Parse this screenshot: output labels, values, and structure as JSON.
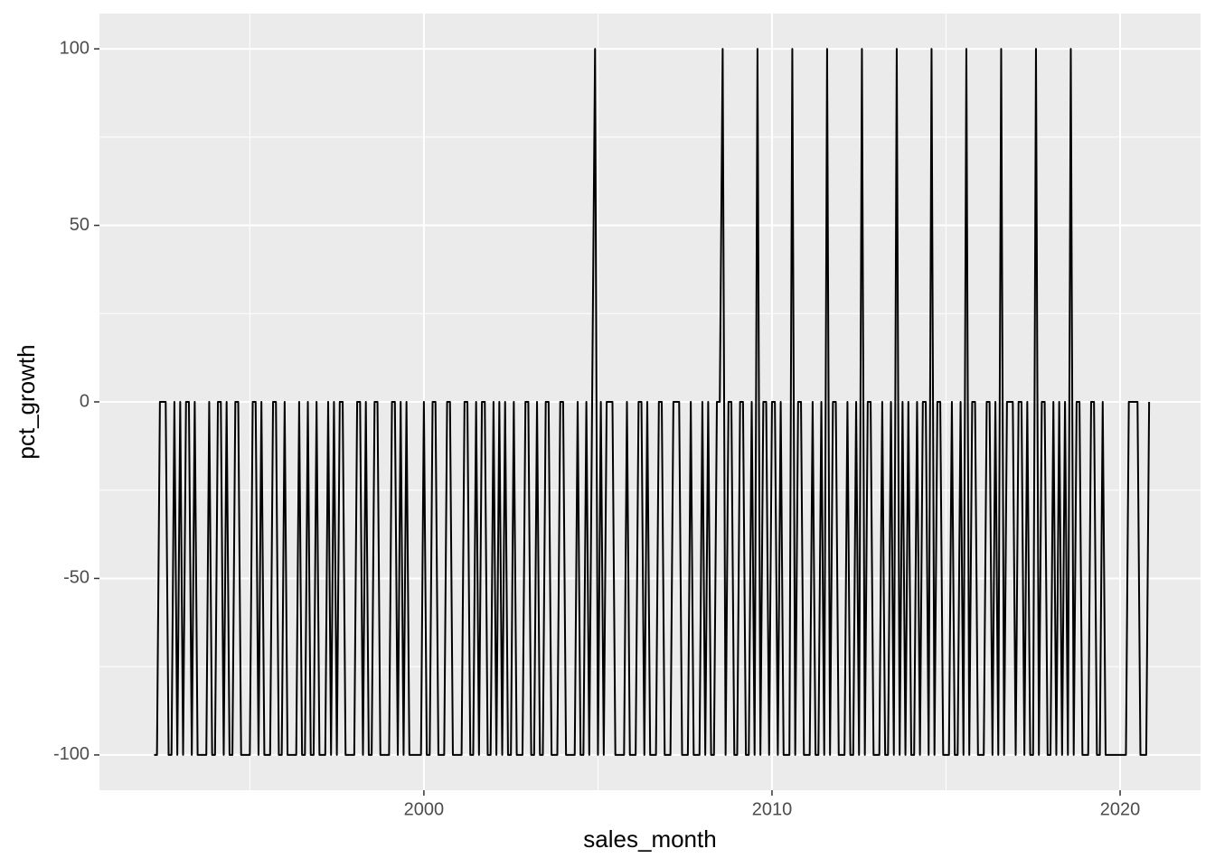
{
  "chart_data": {
    "type": "line",
    "x_label": "sales_month",
    "y_label": "pct_growth",
    "xlim": [
      1990.68,
      2022.31
    ],
    "ylim": [
      -110,
      110
    ],
    "xticks": [
      2000,
      2010,
      2020
    ],
    "yticks": [
      -100,
      -50,
      0,
      50,
      100
    ],
    "xminor": [
      1995,
      2005,
      2015
    ],
    "yminor": [
      -75,
      -25,
      25,
      75
    ],
    "grid": true,
    "x": [
      1992.25,
      1992.333,
      1992.417,
      1992.5,
      1992.583,
      1992.667,
      1992.75,
      1992.833,
      1992.917,
      1993,
      1993.083,
      1993.167,
      1993.25,
      1993.333,
      1993.417,
      1993.5,
      1993.583,
      1993.667,
      1993.75,
      1993.833,
      1993.917,
      1994,
      1994.083,
      1994.167,
      1994.25,
      1994.333,
      1994.417,
      1994.5,
      1994.583,
      1994.667,
      1994.75,
      1994.833,
      1994.917,
      1995,
      1995.083,
      1995.167,
      1995.25,
      1995.333,
      1995.417,
      1995.5,
      1995.583,
      1995.667,
      1995.75,
      1995.833,
      1995.917,
      1996,
      1996.083,
      1996.167,
      1996.25,
      1996.333,
      1996.417,
      1996.5,
      1996.583,
      1996.667,
      1996.75,
      1996.833,
      1996.917,
      1997,
      1997.083,
      1997.167,
      1997.25,
      1997.333,
      1997.417,
      1997.5,
      1997.583,
      1997.667,
      1997.75,
      1997.833,
      1997.917,
      1998,
      1998.083,
      1998.167,
      1998.25,
      1998.333,
      1998.417,
      1998.5,
      1998.583,
      1998.667,
      1998.75,
      1998.833,
      1998.917,
      1999,
      1999.083,
      1999.167,
      1999.25,
      1999.333,
      1999.417,
      1999.5,
      1999.583,
      1999.667,
      1999.75,
      1999.833,
      1999.917,
      2000,
      2000.083,
      2000.167,
      2000.25,
      2000.333,
      2000.417,
      2000.5,
      2000.583,
      2000.667,
      2000.75,
      2000.833,
      2000.917,
      2001,
      2001.083,
      2001.167,
      2001.25,
      2001.333,
      2001.417,
      2001.5,
      2001.583,
      2001.667,
      2001.75,
      2001.833,
      2001.917,
      2002,
      2002.083,
      2002.167,
      2002.25,
      2002.333,
      2002.417,
      2002.5,
      2002.583,
      2002.667,
      2002.75,
      2002.833,
      2002.917,
      2003,
      2003.083,
      2003.167,
      2003.25,
      2003.333,
      2003.417,
      2003.5,
      2003.583,
      2003.667,
      2003.75,
      2003.833,
      2003.917,
      2004,
      2004.083,
      2004.167,
      2004.25,
      2004.333,
      2004.417,
      2004.5,
      2004.583,
      2004.667,
      2004.75,
      2004.833,
      2004.917,
      2005,
      2005.083,
      2005.167,
      2005.25,
      2005.333,
      2005.417,
      2005.5,
      2005.583,
      2005.667,
      2005.75,
      2005.833,
      2005.917,
      2006,
      2006.083,
      2006.167,
      2006.25,
      2006.333,
      2006.417,
      2006.5,
      2006.583,
      2006.667,
      2006.75,
      2006.833,
      2006.917,
      2007,
      2007.083,
      2007.167,
      2007.25,
      2007.333,
      2007.417,
      2007.5,
      2007.583,
      2007.667,
      2007.75,
      2007.833,
      2007.917,
      2008,
      2008.083,
      2008.167,
      2008.25,
      2008.333,
      2008.417,
      2008.5,
      2008.583,
      2008.667,
      2008.75,
      2008.833,
      2008.917,
      2009,
      2009.083,
      2009.167,
      2009.25,
      2009.333,
      2009.417,
      2009.5,
      2009.583,
      2009.667,
      2009.75,
      2009.833,
      2009.917,
      2010,
      2010.083,
      2010.167,
      2010.25,
      2010.333,
      2010.417,
      2010.5,
      2010.583,
      2010.667,
      2010.75,
      2010.833,
      2010.917,
      2011,
      2011.083,
      2011.167,
      2011.25,
      2011.333,
      2011.417,
      2011.5,
      2011.583,
      2011.667,
      2011.75,
      2011.833,
      2011.917,
      2012,
      2012.083,
      2012.167,
      2012.25,
      2012.333,
      2012.417,
      2012.5,
      2012.583,
      2012.667,
      2012.75,
      2012.833,
      2012.917,
      2013,
      2013.083,
      2013.167,
      2013.25,
      2013.333,
      2013.417,
      2013.5,
      2013.583,
      2013.667,
      2013.75,
      2013.833,
      2013.917,
      2014,
      2014.083,
      2014.167,
      2014.25,
      2014.333,
      2014.417,
      2014.5,
      2014.583,
      2014.667,
      2014.75,
      2014.833,
      2014.917,
      2015,
      2015.083,
      2015.167,
      2015.25,
      2015.333,
      2015.417,
      2015.5,
      2015.583,
      2015.667,
      2015.75,
      2015.833,
      2015.917,
      2016,
      2016.083,
      2016.167,
      2016.25,
      2016.333,
      2016.417,
      2016.5,
      2016.583,
      2016.667,
      2016.75,
      2016.833,
      2016.917,
      2017,
      2017.083,
      2017.167,
      2017.25,
      2017.333,
      2017.417,
      2017.5,
      2017.583,
      2017.667,
      2017.75,
      2017.833,
      2017.917,
      2018,
      2018.083,
      2018.167,
      2018.25,
      2018.333,
      2018.417,
      2018.5,
      2018.583,
      2018.667,
      2018.75,
      2018.833,
      2018.917,
      2019,
      2019.083,
      2019.167,
      2019.25,
      2019.333,
      2019.417,
      2019.5,
      2019.583,
      2019.667,
      2019.75,
      2019.833,
      2019.917,
      2020,
      2020.083,
      2020.167,
      2020.25,
      2020.333,
      2020.417,
      2020.5,
      2020.583,
      2020.667,
      2020.75,
      2020.833
    ],
    "series": [
      {
        "color": "#000000",
        "values": [
          -100,
          -100,
          0,
          0,
          0,
          -100,
          -100,
          0,
          -100,
          0,
          -100,
          0,
          0,
          -100,
          0,
          -100,
          -100,
          -100,
          -100,
          0,
          -100,
          -100,
          0,
          0,
          -100,
          0,
          -100,
          -100,
          0,
          0,
          -100,
          -100,
          -100,
          -100,
          0,
          0,
          -100,
          0,
          -100,
          -100,
          -100,
          0,
          0,
          -100,
          -100,
          0,
          -100,
          -100,
          -100,
          -100,
          0,
          -100,
          -100,
          0,
          -100,
          -100,
          0,
          -100,
          -100,
          -100,
          0,
          -100,
          0,
          -100,
          0,
          0,
          -100,
          -100,
          -100,
          -100,
          0,
          0,
          -100,
          0,
          -100,
          -100,
          0,
          0,
          -100,
          -100,
          -100,
          -100,
          0,
          0,
          -100,
          0,
          -100,
          0,
          -100,
          -100,
          -100,
          -100,
          -100,
          0,
          -100,
          -100,
          0,
          0,
          -100,
          -100,
          -100,
          0,
          0,
          -100,
          -100,
          -100,
          -100,
          0,
          0,
          -100,
          -100,
          0,
          -100,
          0,
          0,
          -100,
          -100,
          0,
          -100,
          0,
          -100,
          0,
          -100,
          -100,
          0,
          -100,
          -100,
          -100,
          0,
          0,
          -100,
          -100,
          0,
          -100,
          -100,
          0,
          0,
          -100,
          -100,
          -100,
          0,
          0,
          -100,
          -100,
          -100,
          -100,
          0,
          -100,
          -100,
          0,
          -100,
          0,
          100,
          -100,
          0,
          -100,
          0,
          0,
          0,
          -100,
          -100,
          -100,
          -100,
          0,
          -100,
          -100,
          -100,
          0,
          0,
          -100,
          0,
          -100,
          -100,
          -100,
          0,
          0,
          -100,
          -100,
          -100,
          0,
          0,
          0,
          -100,
          -100,
          -100,
          0,
          -100,
          -100,
          -100,
          0,
          -100,
          0,
          -100,
          -100,
          0,
          0,
          100,
          -100,
          0,
          0,
          -100,
          -100,
          0,
          0,
          -100,
          -100,
          0,
          -100,
          100,
          -100,
          0,
          0,
          -100,
          0,
          0,
          -100,
          0,
          -100,
          -100,
          -100,
          100,
          -100,
          0,
          0,
          -100,
          -100,
          -100,
          0,
          -100,
          -100,
          0,
          -100,
          100,
          -100,
          0,
          0,
          -100,
          -100,
          -100,
          0,
          -100,
          -100,
          0,
          -100,
          100,
          -100,
          0,
          0,
          -100,
          -100,
          -100,
          0,
          -100,
          -100,
          0,
          -100,
          100,
          -100,
          0,
          -100,
          0,
          -100,
          -100,
          0,
          -100,
          0,
          0,
          -100,
          100,
          -100,
          0,
          0,
          -100,
          -100,
          -100,
          0,
          -100,
          -100,
          0,
          -100,
          100,
          -100,
          0,
          0,
          -100,
          -100,
          -100,
          0,
          0,
          -100,
          0,
          -100,
          100,
          -100,
          0,
          0,
          0,
          -100,
          0,
          0,
          -100,
          0,
          -100,
          -100,
          100,
          -100,
          0,
          0,
          -100,
          -100,
          0,
          -100,
          0,
          -100,
          0,
          -100,
          100,
          -100,
          0,
          0,
          -100,
          -100,
          -100,
          0,
          0,
          -100,
          -100,
          0,
          -100,
          -100,
          -100,
          -100,
          -100,
          -100,
          -100,
          -100,
          0,
          0,
          0,
          0,
          -100,
          -100,
          -100,
          0
        ]
      }
    ]
  }
}
